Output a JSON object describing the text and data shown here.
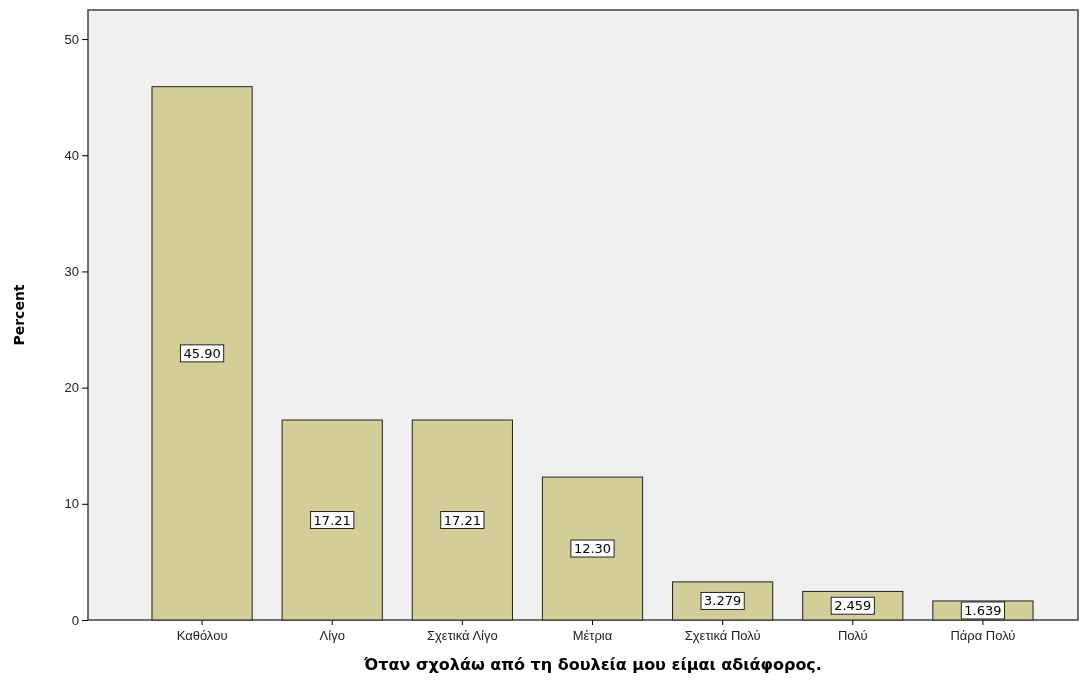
{
  "chart_data": {
    "type": "bar",
    "xlabel": "Όταν σχολάω από τη δουλεία μου είμαι αδιάφορος.",
    "ylabel": "Percent",
    "categories": [
      "Καθόλου",
      "Λίγο",
      "Σχετικά Λίγο",
      "Μέτρια",
      "Σχετικά Πολύ",
      "Πολύ",
      "Πάρα Πολύ"
    ],
    "values": [
      45.9,
      17.21,
      17.21,
      12.3,
      3.279,
      2.459,
      1.639
    ],
    "value_labels": [
      "45.90",
      "17.21",
      "17.21",
      "12.30",
      "3.279",
      "2.459",
      "1.639"
    ],
    "color": "#d3ce97",
    "ylim": [
      0,
      52.5
    ],
    "yticks": [
      0,
      10,
      20,
      30,
      40,
      50
    ],
    "grid": false
  }
}
